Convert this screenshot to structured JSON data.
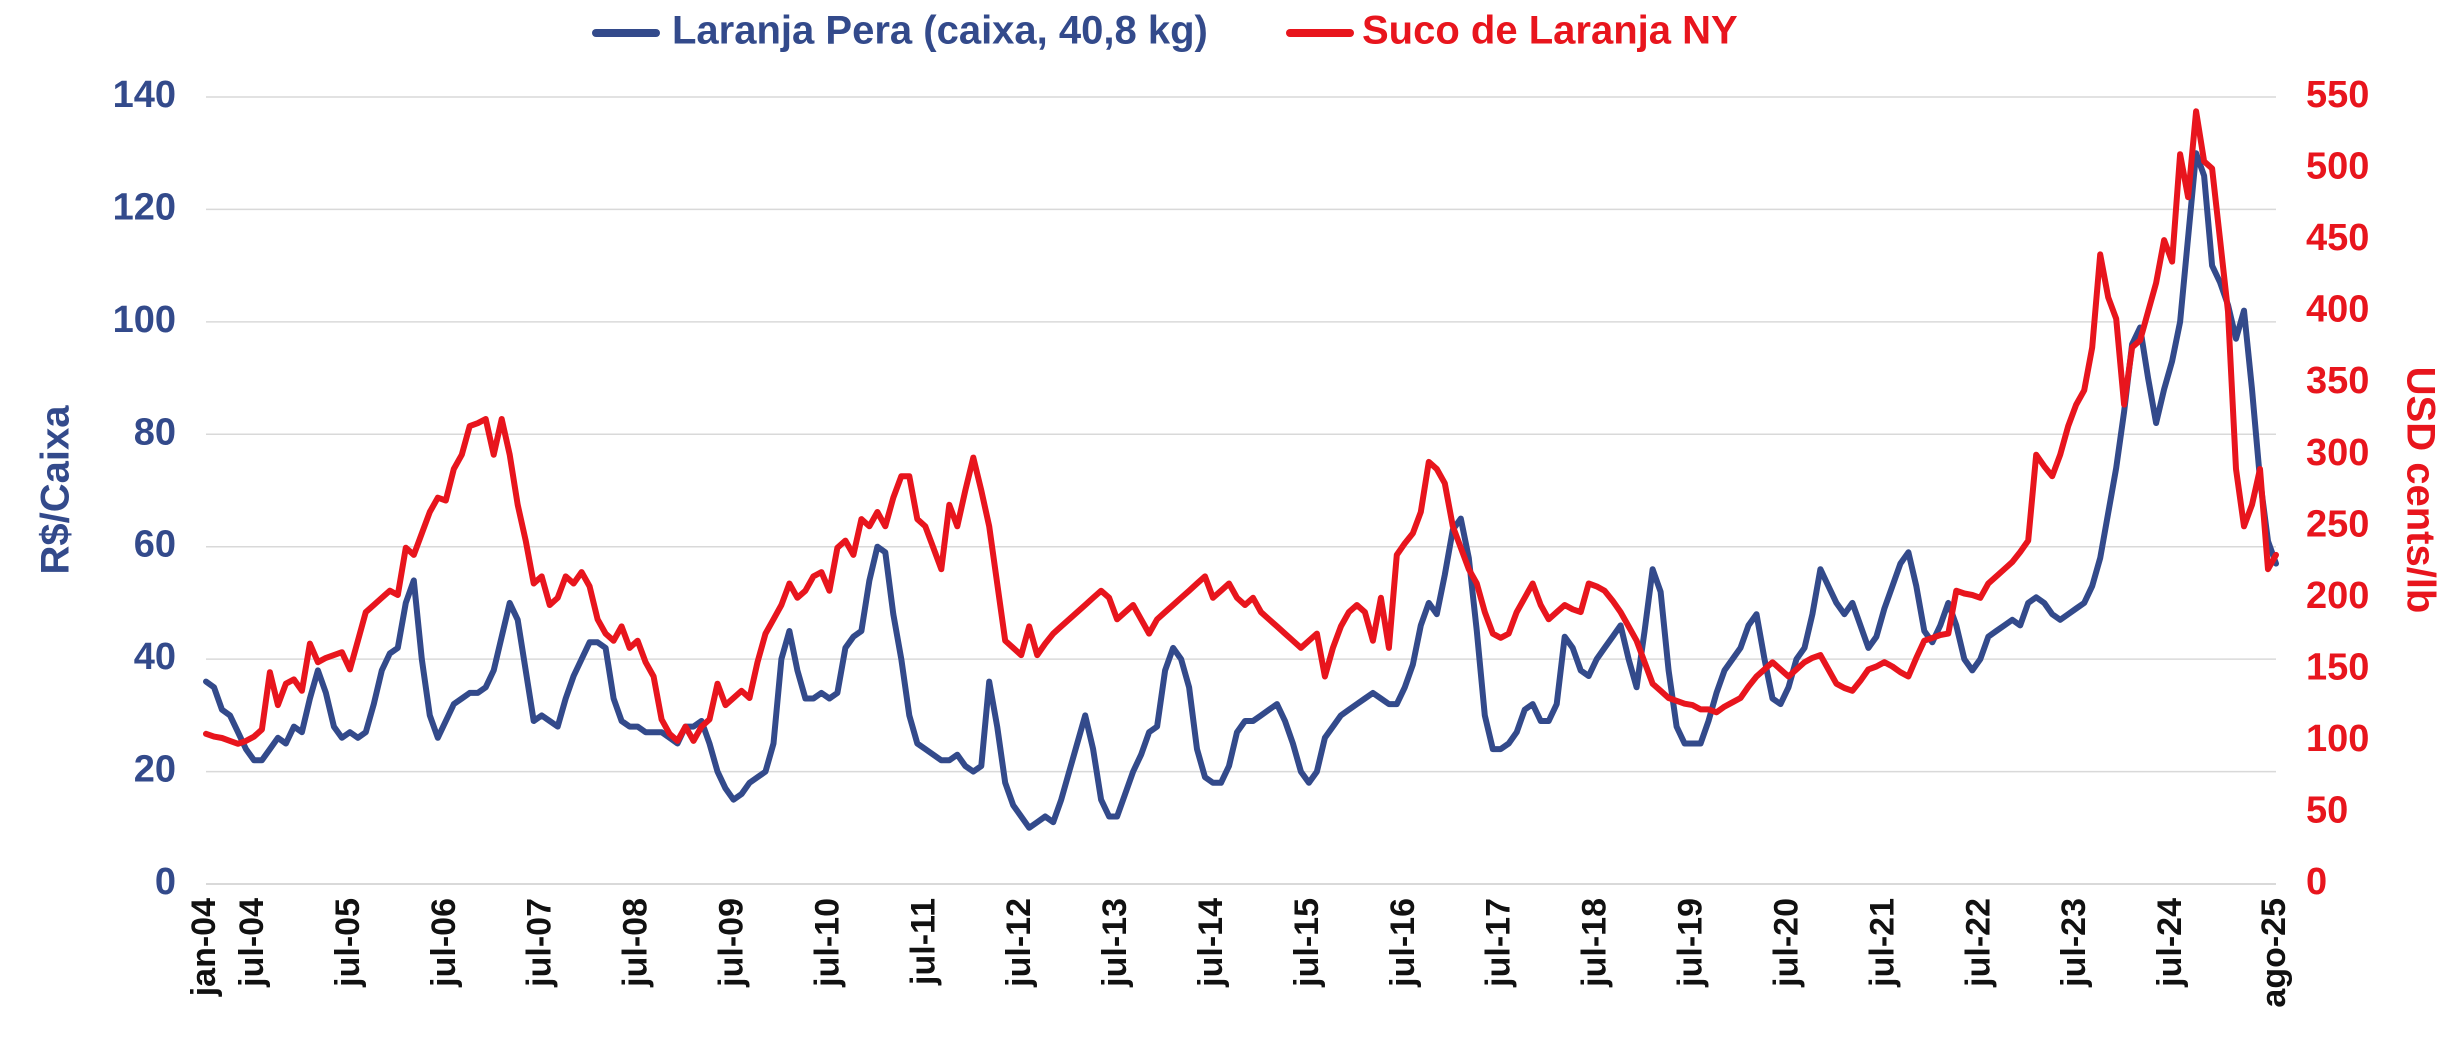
{
  "chart_data": {
    "type": "line",
    "ylabel": "R$/Caixa",
    "y2label": "USD cents/lb",
    "categories": [
      "jan-04",
      null,
      null,
      null,
      null,
      null,
      "jul-04",
      null,
      null,
      null,
      null,
      null,
      null,
      null,
      null,
      null,
      null,
      null,
      "jul-05",
      null,
      null,
      null,
      null,
      null,
      null,
      null,
      null,
      null,
      null,
      null,
      "jul-06",
      null,
      null,
      null,
      null,
      null,
      null,
      null,
      null,
      null,
      null,
      null,
      "jul-07",
      null,
      null,
      null,
      null,
      null,
      null,
      null,
      null,
      null,
      null,
      null,
      "jul-08",
      null,
      null,
      null,
      null,
      null,
      null,
      null,
      null,
      null,
      null,
      null,
      "jul-09",
      null,
      null,
      null,
      null,
      null,
      null,
      null,
      null,
      null,
      null,
      null,
      "jul-10",
      null,
      null,
      null,
      null,
      null,
      null,
      null,
      null,
      null,
      null,
      null,
      "jul-11",
      null,
      null,
      null,
      null,
      null,
      null,
      null,
      null,
      null,
      null,
      null,
      "jul-12",
      null,
      null,
      null,
      null,
      null,
      null,
      null,
      null,
      null,
      null,
      null,
      "jul-13",
      null,
      null,
      null,
      null,
      null,
      null,
      null,
      null,
      null,
      null,
      null,
      "jul-14",
      null,
      null,
      null,
      null,
      null,
      null,
      null,
      null,
      null,
      null,
      null,
      "jul-15",
      null,
      null,
      null,
      null,
      null,
      null,
      null,
      null,
      null,
      null,
      null,
      "jul-16",
      null,
      null,
      null,
      null,
      null,
      null,
      null,
      null,
      null,
      null,
      null,
      "jul-17",
      null,
      null,
      null,
      null,
      null,
      null,
      null,
      null,
      null,
      null,
      null,
      "jul-18",
      null,
      null,
      null,
      null,
      null,
      null,
      null,
      null,
      null,
      null,
      null,
      "jul-19",
      null,
      null,
      null,
      null,
      null,
      null,
      null,
      null,
      null,
      null,
      null,
      "jul-20",
      null,
      null,
      null,
      null,
      null,
      null,
      null,
      null,
      null,
      null,
      null,
      "jul-21",
      null,
      null,
      null,
      null,
      null,
      null,
      null,
      null,
      null,
      null,
      null,
      "jul-22",
      null,
      null,
      null,
      null,
      null,
      null,
      null,
      null,
      null,
      null,
      null,
      "jul-23",
      null,
      null,
      null,
      null,
      null,
      null,
      null,
      null,
      null,
      null,
      null,
      "jul-24",
      null,
      null,
      null,
      null,
      null,
      null,
      null,
      null,
      null,
      null,
      null,
      null,
      "ago-25"
    ],
    "series": [
      {
        "name": "Laranja Pera (caixa, 40,8 kg)",
        "color": "#334a8b",
        "values": [
          36,
          35,
          31,
          30,
          27,
          24,
          22,
          22,
          24,
          26,
          25,
          28,
          27,
          33,
          38,
          34,
          28,
          26,
          27,
          26,
          27,
          32,
          38,
          41,
          42,
          50,
          54,
          40,
          30,
          26,
          29,
          32,
          33,
          34,
          34,
          35,
          38,
          44,
          50,
          47,
          38,
          29,
          30,
          29,
          28,
          33,
          37,
          40,
          43,
          43,
          42,
          33,
          29,
          28,
          28,
          27,
          27,
          27,
          26,
          25,
          28,
          28,
          29,
          25,
          20,
          17,
          15,
          16,
          18,
          19,
          20,
          25,
          40,
          45,
          38,
          33,
          33,
          34,
          33,
          34,
          42,
          44,
          45,
          54,
          60,
          59,
          48,
          40,
          30,
          25,
          24,
          23,
          22,
          22,
          23,
          21,
          20,
          21,
          36,
          28,
          18,
          14,
          12,
          10,
          11,
          12,
          11,
          15,
          20,
          25,
          30,
          24,
          15,
          12,
          12,
          16,
          20,
          23,
          27,
          28,
          38,
          42,
          40,
          35,
          24,
          19,
          18,
          18,
          21,
          27,
          29,
          29,
          30,
          31,
          32,
          29,
          25,
          20,
          18,
          20,
          26,
          28,
          30,
          31,
          32,
          33,
          34,
          33,
          32,
          32,
          35,
          39,
          46,
          50,
          48,
          55,
          63,
          65,
          58,
          45,
          30,
          24,
          24,
          25,
          27,
          31,
          32,
          29,
          29,
          32,
          44,
          42,
          38,
          37,
          40,
          42,
          44,
          46,
          40,
          35,
          45,
          56,
          52,
          38,
          28,
          25,
          25,
          25,
          29,
          34,
          38,
          40,
          42,
          46,
          48,
          40,
          33,
          32,
          35,
          40,
          42,
          48,
          56,
          53,
          50,
          48,
          50,
          46,
          42,
          44,
          49,
          53,
          57,
          59,
          53,
          45,
          43,
          46,
          50,
          46,
          40,
          38,
          40,
          44,
          45,
          46,
          47,
          46,
          50,
          51,
          50,
          48,
          47,
          48,
          49,
          50,
          53,
          58,
          66,
          74,
          84,
          96,
          99,
          90,
          82,
          88,
          93,
          100,
          115,
          130,
          126,
          110,
          107,
          103,
          97,
          102,
          88,
          72,
          61,
          57
        ]
      },
      {
        "name": "Suco de Laranja NY",
        "color": "#e8151d",
        "axis": "y2",
        "values": [
          105,
          103,
          102,
          100,
          98,
          100,
          103,
          108,
          148,
          125,
          140,
          143,
          135,
          168,
          155,
          158,
          160,
          162,
          150,
          170,
          190,
          195,
          200,
          205,
          202,
          235,
          230,
          245,
          260,
          270,
          268,
          290,
          300,
          320,
          322,
          325,
          300,
          325,
          300,
          265,
          240,
          210,
          215,
          195,
          200,
          215,
          210,
          218,
          208,
          185,
          175,
          170,
          180,
          165,
          170,
          155,
          145,
          115,
          105,
          100,
          110,
          100,
          110,
          115,
          140,
          125,
          130,
          135,
          130,
          155,
          175,
          185,
          195,
          210,
          200,
          205,
          215,
          218,
          205,
          235,
          240,
          230,
          255,
          250,
          260,
          250,
          270,
          285,
          285,
          255,
          250,
          235,
          220,
          265,
          250,
          275,
          298,
          275,
          250,
          210,
          170,
          165,
          160,
          180,
          160,
          168,
          175,
          180,
          185,
          190,
          195,
          200,
          205,
          200,
          185,
          190,
          195,
          185,
          175,
          185,
          190,
          195,
          200,
          205,
          210,
          215,
          200,
          205,
          210,
          200,
          195,
          200,
          190,
          185,
          180,
          175,
          170,
          165,
          170,
          175,
          145,
          165,
          180,
          190,
          195,
          190,
          170,
          200,
          165,
          230,
          238,
          245,
          260,
          295,
          290,
          280,
          250,
          235,
          220,
          210,
          190,
          175,
          172,
          175,
          190,
          200,
          210,
          195,
          185,
          190,
          195,
          192,
          190,
          210,
          208,
          205,
          198,
          190,
          180,
          170,
          155,
          140,
          135,
          130,
          128,
          126,
          125,
          122,
          122,
          120,
          124,
          127,
          130,
          138,
          145,
          150,
          155,
          150,
          145,
          150,
          155,
          158,
          160,
          150,
          140,
          137,
          135,
          142,
          150,
          152,
          155,
          152,
          148,
          145,
          158,
          170,
          172,
          174,
          175,
          205,
          203,
          202,
          200,
          210,
          215,
          220,
          225,
          232,
          240,
          300,
          292,
          285,
          300,
          320,
          335,
          345,
          375,
          440,
          410,
          395,
          335,
          375,
          380,
          400,
          420,
          450,
          435,
          510,
          480,
          540,
          505,
          500,
          450,
          400,
          290,
          250,
          265,
          290,
          220,
          230
        ]
      }
    ],
    "ylim": [
      0,
      140
    ],
    "yticks": [
      0,
      20,
      40,
      60,
      80,
      100,
      120,
      140
    ],
    "y2lim": [
      0,
      550
    ],
    "y2ticks": [
      0,
      50,
      100,
      150,
      200,
      250,
      300,
      350,
      400,
      450,
      500,
      550
    ],
    "grid": true
  }
}
